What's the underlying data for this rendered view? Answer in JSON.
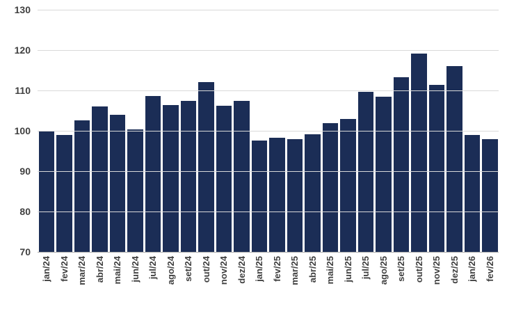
{
  "chart_data": {
    "type": "bar",
    "title": "",
    "xlabel": "",
    "ylabel": "",
    "categories": [
      "jan/24",
      "fev/24",
      "mar/24",
      "abr/24",
      "mai/24",
      "jun/24",
      "jul/24",
      "ago/24",
      "set/24",
      "out/24",
      "nov/24",
      "dez/24",
      "jan/25",
      "fev/25",
      "mar/25",
      "abr/25",
      "mai/25",
      "jun/25",
      "jul/25",
      "ago/25",
      "set/25",
      "out/25",
      "nov/25",
      "dez/25",
      "jan/26",
      "fev/26"
    ],
    "values": [
      99.8,
      99.0,
      102.6,
      106.0,
      104.0,
      100.3,
      108.6,
      106.3,
      107.4,
      112.1,
      106.2,
      107.5,
      97.6,
      98.3,
      97.9,
      99.2,
      101.9,
      103.0,
      109.7,
      108.5,
      113.2,
      119.1,
      111.4,
      116.1,
      98.9,
      98.0
    ],
    "ylim": [
      70,
      130
    ],
    "yticks": [
      70,
      80,
      90,
      100,
      110,
      120,
      130
    ],
    "grid": true,
    "legend": false
  },
  "colors": {
    "bar": "#1b2d56",
    "grid": "#d9d9d9",
    "axis": "#a6a6a6",
    "tick_label": "#404040",
    "background": "#ffffff"
  }
}
